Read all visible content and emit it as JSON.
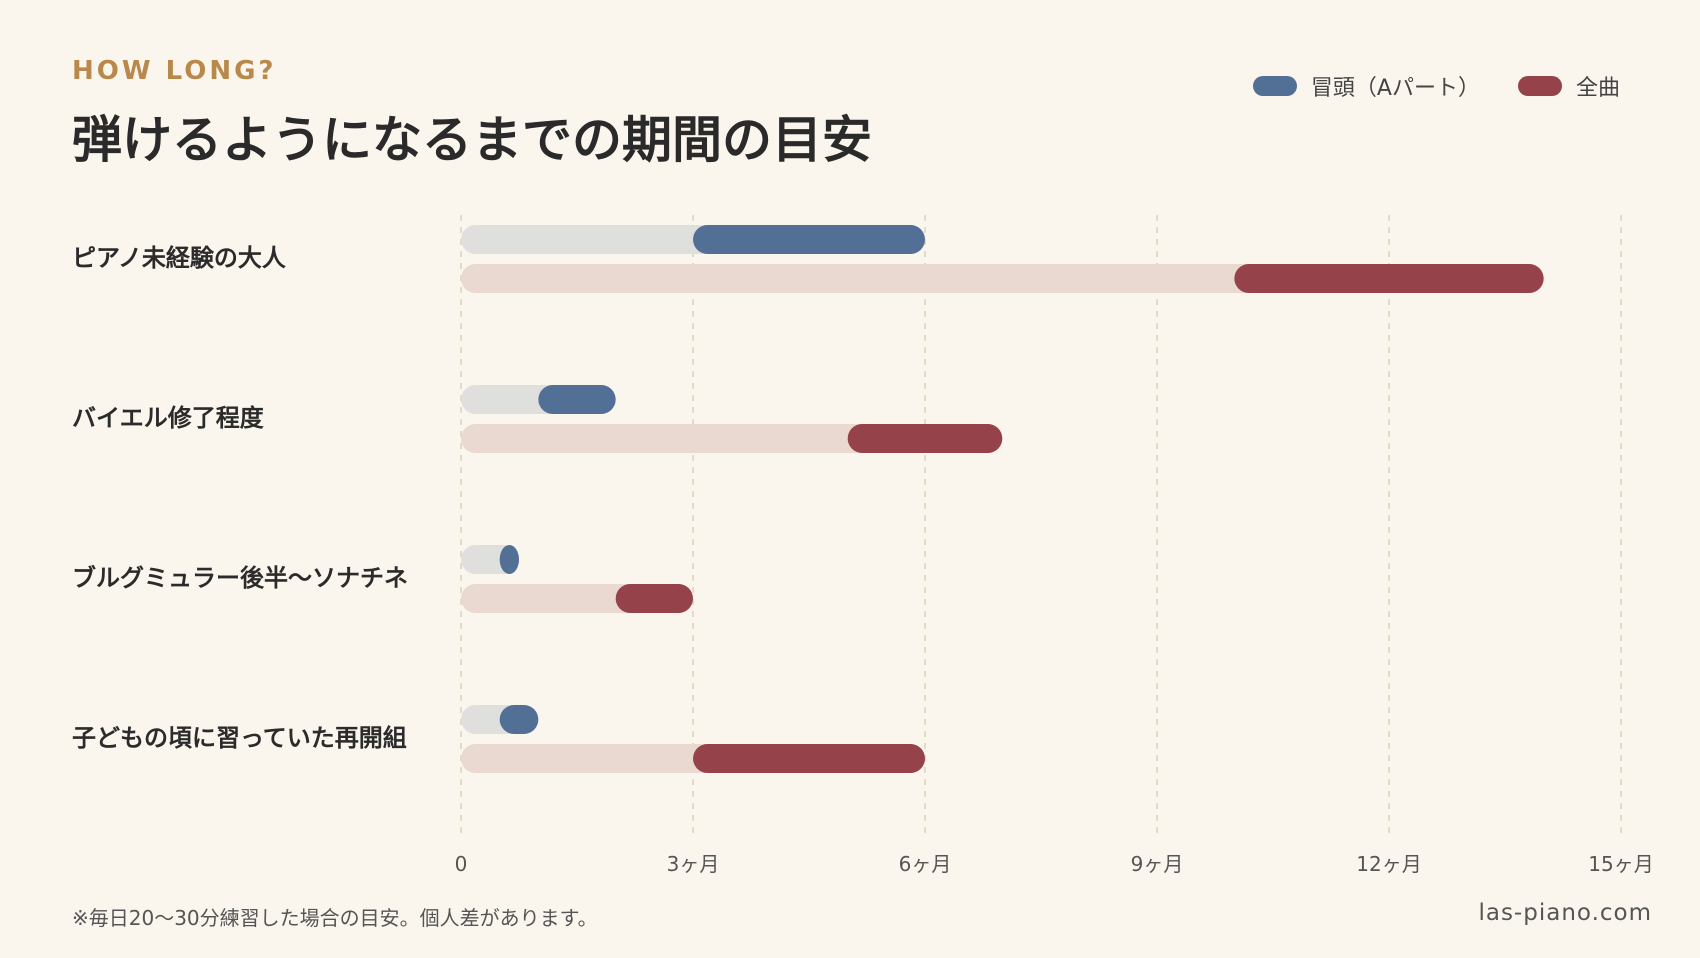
{
  "header": {
    "eyebrow": "HOW LONG?",
    "title": "弾けるようになるまでの期間の目安"
  },
  "footer": {
    "note": "※毎日20〜30分練習した場合の目安。個人差があります。",
    "site": "las-piano.com"
  },
  "colors": {
    "background": "#faf6ee",
    "intro_track": "#dfe0de",
    "intro_bar": "#526f96",
    "full_track": "#ead9d1",
    "full_bar": "#96424a",
    "grid": "#ddd2b8"
  },
  "chart_data": {
    "type": "bar",
    "orientation": "horizontal-range",
    "grid": true,
    "legend_position": "top-right",
    "xlim": [
      0,
      15
    ],
    "x_unit": "ヶ月",
    "x_ticks": [
      {
        "value": 0,
        "label": "0"
      },
      {
        "value": 3,
        "label": "3ヶ月"
      },
      {
        "value": 6,
        "label": "6ヶ月"
      },
      {
        "value": 9,
        "label": "9ヶ月"
      },
      {
        "value": 12,
        "label": "12ヶ月"
      },
      {
        "value": 15,
        "label": "15ヶ月"
      }
    ],
    "categories": [
      "ピアノ未経験の大人",
      "バイエル修了程度",
      "ブルグミュラー後半〜ソナチネ",
      "子どもの頃に習っていた再開組"
    ],
    "series": [
      {
        "name": "冒頭（Aパート）",
        "key": "intro",
        "ranges": [
          [
            3,
            6
          ],
          [
            1,
            2
          ],
          [
            0.5,
            0.75
          ],
          [
            0.5,
            1
          ]
        ]
      },
      {
        "name": "全曲",
        "key": "full",
        "ranges": [
          [
            10,
            14
          ],
          [
            5,
            7
          ],
          [
            2,
            3
          ],
          [
            3,
            6
          ]
        ]
      }
    ]
  }
}
